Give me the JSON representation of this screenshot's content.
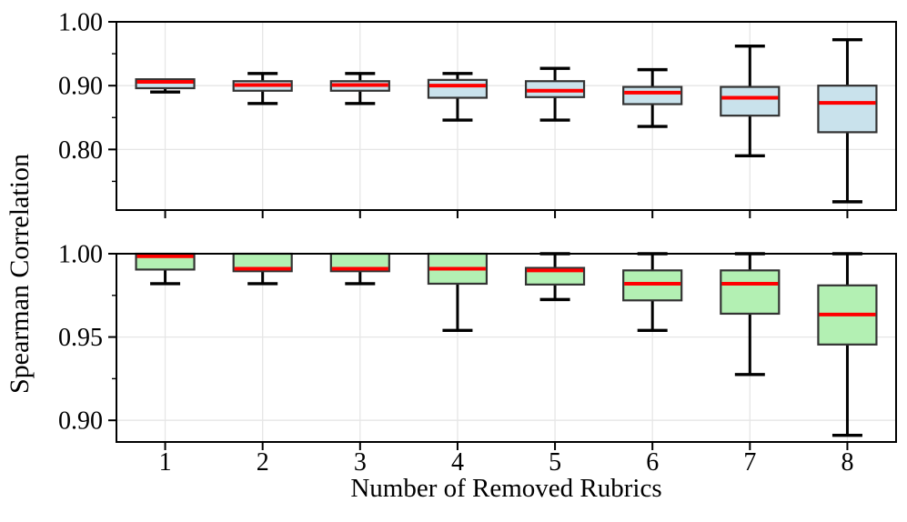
{
  "axes": {
    "ylabel": "Spearman Correlation",
    "xlabel": "Number of Removed Rubrics"
  },
  "style": {
    "median_color": "#ff0000",
    "box_edge_color": "#333333",
    "whisker_color": "#000000",
    "grid_color": "#e6e6e6",
    "spine_color": "#000000",
    "text_color": "#000000",
    "top_box_fill": "#c9e2ec",
    "bottom_box_fill": "#b3f0b3"
  },
  "chart_data": [
    {
      "type": "boxplot",
      "name": "top-panel",
      "box_fill": "#c9e2ec",
      "categories": [
        "1",
        "2",
        "3",
        "4",
        "5",
        "6",
        "7",
        "8"
      ],
      "show_x_labels": false,
      "xlim": [
        0.5,
        8.5
      ],
      "ylim": [
        0.705,
        1.0
      ],
      "grid": true,
      "yticks": [
        {
          "v": 1.0,
          "label": "1.00"
        },
        {
          "v": 0.9,
          "label": "0.90"
        },
        {
          "v": 0.8,
          "label": "0.80"
        }
      ],
      "minor_yticks": [
        0.95,
        0.85,
        0.75
      ],
      "boxes": [
        {
          "whislo": 0.89,
          "q1": 0.896,
          "med": 0.906,
          "q3": 0.91,
          "whishi": 0.91
        },
        {
          "whislo": 0.872,
          "q1": 0.892,
          "med": 0.901,
          "q3": 0.907,
          "whishi": 0.919
        },
        {
          "whislo": 0.872,
          "q1": 0.892,
          "med": 0.901,
          "q3": 0.907,
          "whishi": 0.919
        },
        {
          "whislo": 0.846,
          "q1": 0.881,
          "med": 0.9,
          "q3": 0.909,
          "whishi": 0.919
        },
        {
          "whislo": 0.846,
          "q1": 0.882,
          "med": 0.892,
          "q3": 0.907,
          "whishi": 0.927
        },
        {
          "whislo": 0.836,
          "q1": 0.871,
          "med": 0.889,
          "q3": 0.898,
          "whishi": 0.925
        },
        {
          "whislo": 0.79,
          "q1": 0.853,
          "med": 0.881,
          "q3": 0.898,
          "whishi": 0.962
        },
        {
          "whislo": 0.718,
          "q1": 0.827,
          "med": 0.873,
          "q3": 0.9,
          "whishi": 0.972
        }
      ]
    },
    {
      "type": "boxplot",
      "name": "bottom-panel",
      "box_fill": "#b3f0b3",
      "categories": [
        "1",
        "2",
        "3",
        "4",
        "5",
        "6",
        "7",
        "8"
      ],
      "show_x_labels": true,
      "xlim": [
        0.5,
        8.5
      ],
      "ylim": [
        0.887,
        1.0
      ],
      "grid": true,
      "yticks": [
        {
          "v": 1.0,
          "label": "1.00"
        },
        {
          "v": 0.95,
          "label": "0.95"
        },
        {
          "v": 0.9,
          "label": "0.90"
        }
      ],
      "minor_yticks": [
        0.975,
        0.925
      ],
      "boxes": [
        {
          "whislo": 0.982,
          "q1": 0.9905,
          "med": 0.9985,
          "q3": 1.0,
          "whishi": 1.0
        },
        {
          "whislo": 0.982,
          "q1": 0.9895,
          "med": 0.991,
          "q3": 1.0,
          "whishi": 1.0
        },
        {
          "whislo": 0.982,
          "q1": 0.9895,
          "med": 0.991,
          "q3": 1.0,
          "whishi": 1.0
        },
        {
          "whislo": 0.954,
          "q1": 0.982,
          "med": 0.991,
          "q3": 1.0,
          "whishi": 1.0
        },
        {
          "whislo": 0.9725,
          "q1": 0.9815,
          "med": 0.99,
          "q3": 0.9915,
          "whishi": 1.0
        },
        {
          "whislo": 0.954,
          "q1": 0.972,
          "med": 0.982,
          "q3": 0.99,
          "whishi": 1.0
        },
        {
          "whislo": 0.9275,
          "q1": 0.964,
          "med": 0.982,
          "q3": 0.99,
          "whishi": 1.0
        },
        {
          "whislo": 0.891,
          "q1": 0.9455,
          "med": 0.9635,
          "q3": 0.981,
          "whishi": 1.0
        }
      ]
    }
  ]
}
